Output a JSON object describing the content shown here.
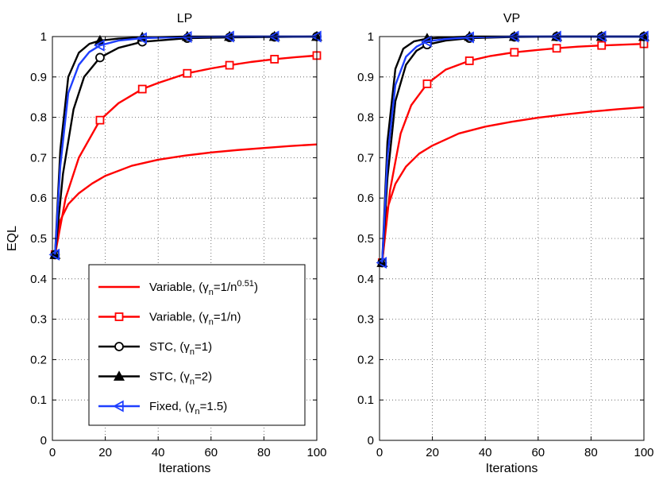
{
  "chart_data": [
    {
      "type": "line",
      "title": "LP",
      "xlabel": "Iterations",
      "ylabel": "EQL",
      "xlim": [
        0,
        100
      ],
      "ylim": [
        0,
        1
      ],
      "grid": true,
      "xticks": [
        0,
        20,
        40,
        60,
        80,
        100
      ],
      "yticks": [
        0,
        0.1,
        0.2,
        0.3,
        0.4,
        0.5,
        0.6,
        0.7,
        0.8,
        0.9,
        1
      ],
      "xtick_labels": [
        "0",
        "20",
        "40",
        "60",
        "80",
        "100"
      ],
      "ytick_labels": [
        "0",
        "0.1",
        "0.2",
        "0.3",
        "0.4",
        "0.5",
        "0.6",
        "0.7",
        "0.8",
        "0.9",
        "1"
      ],
      "legend_position": "lower-right",
      "series": [
        {
          "name": "Variable, (γn=1/n0.51)",
          "color": "#ff0000",
          "marker": "none",
          "x": [
            1,
            3,
            6,
            10,
            15,
            20,
            30,
            40,
            50,
            60,
            70,
            80,
            90,
            100
          ],
          "y": [
            0.46,
            0.545,
            0.585,
            0.612,
            0.636,
            0.655,
            0.68,
            0.695,
            0.705,
            0.713,
            0.719,
            0.724,
            0.729,
            0.733
          ]
        },
        {
          "name": "Variable, (γn=1/n)",
          "color": "#ff0000",
          "marker": "square",
          "x": [
            1,
            5,
            10,
            18,
            25,
            34,
            40,
            51,
            60,
            67,
            75,
            84,
            92,
            100
          ],
          "y": [
            0.46,
            0.6,
            0.7,
            0.793,
            0.835,
            0.87,
            0.885,
            0.909,
            0.921,
            0.929,
            0.937,
            0.944,
            0.949,
            0.953
          ],
          "marker_x": [
            1,
            18,
            34,
            51,
            67,
            84,
            100
          ]
        },
        {
          "name": "STC, (γn=1)",
          "color": "#000000",
          "marker": "circle",
          "x": [
            1,
            4,
            8,
            12,
            18,
            25,
            34,
            51,
            67,
            84,
            100
          ],
          "y": [
            0.46,
            0.66,
            0.82,
            0.9,
            0.948,
            0.972,
            0.987,
            0.996,
            0.998,
            0.999,
            1.0
          ],
          "marker_x": [
            1,
            18,
            34,
            51,
            67,
            84,
            100
          ]
        },
        {
          "name": "STC, (γn=2)",
          "color": "#000000",
          "marker": "triangle-up",
          "x": [
            1,
            3,
            6,
            10,
            14,
            18,
            25,
            34,
            51,
            67,
            84,
            100
          ],
          "y": [
            0.46,
            0.72,
            0.9,
            0.96,
            0.982,
            0.99,
            0.995,
            0.998,
            1.0,
            1.0,
            1.0,
            1.0
          ],
          "marker_x": [
            1,
            18,
            34,
            51,
            67,
            84,
            100
          ]
        },
        {
          "name": "Fixed, (γn=1.5)",
          "color": "#1f3fff",
          "marker": "triangle-left",
          "x": [
            1,
            3,
            6,
            10,
            14,
            18,
            25,
            34,
            51,
            67,
            84,
            100
          ],
          "y": [
            0.46,
            0.68,
            0.86,
            0.93,
            0.962,
            0.978,
            0.99,
            0.996,
            0.999,
            1.0,
            1.0,
            1.0
          ],
          "marker_x": [
            1,
            18,
            34,
            51,
            67,
            84,
            100
          ]
        }
      ]
    },
    {
      "type": "line",
      "title": "VP",
      "xlabel": "Iterations",
      "ylabel": "",
      "xlim": [
        0,
        100
      ],
      "ylim": [
        0,
        1
      ],
      "grid": true,
      "xticks": [
        0,
        20,
        40,
        60,
        80,
        100
      ],
      "yticks": [
        0,
        0.1,
        0.2,
        0.3,
        0.4,
        0.5,
        0.6,
        0.7,
        0.8,
        0.9,
        1
      ],
      "xtick_labels": [
        "0",
        "20",
        "40",
        "60",
        "80",
        "100"
      ],
      "ytick_labels": [
        "0",
        "0.1",
        "0.2",
        "0.3",
        "0.4",
        "0.5",
        "0.6",
        "0.7",
        "0.8",
        "0.9",
        "1"
      ],
      "series": [
        {
          "name": "Variable, (γn=1/n0.51)",
          "color": "#ff0000",
          "marker": "none",
          "x": [
            1,
            3,
            6,
            10,
            15,
            20,
            30,
            40,
            50,
            60,
            70,
            80,
            90,
            100
          ],
          "y": [
            0.44,
            0.575,
            0.635,
            0.678,
            0.71,
            0.73,
            0.76,
            0.777,
            0.789,
            0.799,
            0.807,
            0.814,
            0.82,
            0.825
          ]
        },
        {
          "name": "Variable, (γn=1/n)",
          "color": "#ff0000",
          "marker": "square",
          "x": [
            1,
            4,
            8,
            12,
            18,
            25,
            34,
            42,
            51,
            60,
            67,
            75,
            84,
            92,
            100
          ],
          "y": [
            0.44,
            0.62,
            0.76,
            0.83,
            0.883,
            0.918,
            0.94,
            0.952,
            0.961,
            0.967,
            0.971,
            0.975,
            0.978,
            0.98,
            0.982
          ],
          "marker_x": [
            1,
            18,
            34,
            51,
            67,
            84,
            100
          ]
        },
        {
          "name": "STC, (γn=1)",
          "color": "#000000",
          "marker": "circle",
          "x": [
            1,
            3,
            6,
            10,
            14,
            18,
            25,
            34,
            51,
            67,
            84,
            100
          ],
          "y": [
            0.44,
            0.65,
            0.84,
            0.93,
            0.965,
            0.98,
            0.99,
            0.996,
            0.999,
            1.0,
            1.0,
            1.0
          ],
          "marker_x": [
            1,
            18,
            34,
            51,
            67,
            84,
            100
          ]
        },
        {
          "name": "STC, (γn=2)",
          "color": "#000000",
          "marker": "triangle-up",
          "x": [
            1,
            3,
            6,
            9,
            13,
            18,
            25,
            34,
            51,
            67,
            84,
            100
          ],
          "y": [
            0.44,
            0.74,
            0.92,
            0.97,
            0.988,
            0.995,
            0.998,
            1.0,
            1.0,
            1.0,
            1.0,
            1.0
          ],
          "marker_x": [
            1,
            18,
            34,
            51,
            67,
            84,
            100
          ]
        },
        {
          "name": "Fixed, (γn=1.5)",
          "color": "#1f3fff",
          "marker": "triangle-left",
          "x": [
            1,
            3,
            6,
            10,
            14,
            18,
            25,
            34,
            51,
            67,
            84,
            100
          ],
          "y": [
            0.44,
            0.7,
            0.88,
            0.95,
            0.975,
            0.988,
            0.994,
            0.998,
            1.0,
            1.0,
            1.0,
            1.0
          ],
          "marker_x": [
            1,
            18,
            34,
            51,
            67,
            84,
            100
          ]
        }
      ]
    }
  ],
  "legend": {
    "items": [
      {
        "prefix": "Variable, (",
        "sym": "γ",
        "sub": "n",
        "mid": "=1/n",
        "sup": "0.51",
        "suffix": ")",
        "color": "#ff0000",
        "marker": "none"
      },
      {
        "prefix": "Variable, (",
        "sym": "γ",
        "sub": "n",
        "mid": "=1/n",
        "sup": "",
        "suffix": ")",
        "color": "#ff0000",
        "marker": "square"
      },
      {
        "prefix": "STC, (",
        "sym": "γ",
        "sub": "n",
        "mid": "=1",
        "sup": "",
        "suffix": ")",
        "color": "#000000",
        "marker": "circle"
      },
      {
        "prefix": "STC, (",
        "sym": "γ",
        "sub": "n",
        "mid": "=2",
        "sup": "",
        "suffix": ")",
        "color": "#000000",
        "marker": "triangle-up"
      },
      {
        "prefix": "Fixed, (",
        "sym": "γ",
        "sub": "n",
        "mid": "=1.5",
        "sup": "",
        "suffix": ")",
        "color": "#1f3fff",
        "marker": "triangle-left"
      }
    ]
  }
}
